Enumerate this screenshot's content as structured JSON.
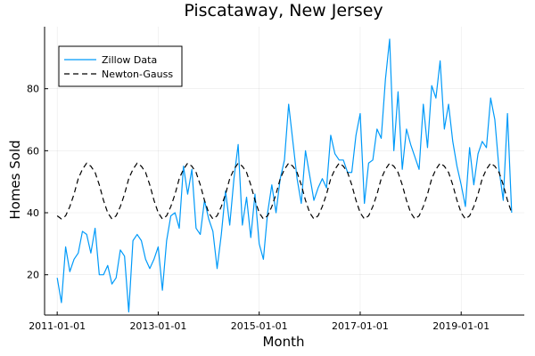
{
  "chart_data": {
    "type": "line",
    "title": "Piscataway, New Jersey",
    "xlabel": "Month",
    "ylabel": "Homes Sold",
    "x_start": "2011-01-01",
    "x_ticks": [
      "2011-01-01",
      "2013-01-01",
      "2015-01-01",
      "2017-01-01",
      "2019-01-01"
    ],
    "xlim": [
      "2010-10-01",
      "2020-04-01"
    ],
    "y_ticks": [
      20,
      40,
      60,
      80
    ],
    "ylim": [
      7,
      100
    ],
    "grid": true,
    "legend_position": "top-left",
    "series": [
      {
        "name": "Zillow Data",
        "color": "#009AF9",
        "style": "solid",
        "values": [
          19,
          11,
          29,
          21,
          25,
          27,
          34,
          33,
          27,
          35,
          20,
          20,
          23,
          17,
          19,
          28,
          26,
          8,
          31,
          33,
          31,
          25,
          22,
          25,
          29,
          15,
          31,
          39,
          40,
          35,
          55,
          46,
          54,
          35,
          33,
          44,
          38,
          34,
          22,
          33,
          47,
          36,
          51,
          62,
          36,
          45,
          32,
          46,
          30,
          25,
          40,
          49,
          40,
          51,
          57,
          75,
          63,
          51,
          43,
          60,
          52,
          44,
          48,
          51,
          48,
          65,
          59,
          57,
          57,
          53,
          53,
          65,
          72,
          43,
          56,
          57,
          67,
          64,
          83,
          96,
          60,
          79,
          54,
          67,
          62,
          58,
          54,
          75,
          61,
          81,
          77,
          89,
          67,
          75,
          63,
          55,
          49,
          42,
          61,
          49,
          59,
          63,
          61,
          77,
          70,
          54,
          44,
          72,
          40
        ]
      },
      {
        "name": "Newton-Gauss",
        "color": "#000000",
        "style": "dashed",
        "values": [
          39,
          38,
          39,
          42,
          46,
          51,
          54,
          56,
          55,
          53,
          49,
          44,
          40,
          38,
          39,
          42,
          46,
          51,
          54,
          56,
          55,
          53,
          49,
          44,
          40,
          38,
          39,
          42,
          46,
          51,
          54,
          56,
          55,
          53,
          49,
          44,
          40,
          38,
          39,
          42,
          46,
          51,
          54,
          56,
          55,
          53,
          49,
          44,
          40,
          38,
          39,
          42,
          46,
          51,
          54,
          56,
          55,
          53,
          49,
          44,
          40,
          38,
          39,
          42,
          46,
          51,
          54,
          56,
          55,
          53,
          49,
          44,
          40,
          38,
          39,
          42,
          46,
          51,
          54,
          56,
          55,
          53,
          49,
          44,
          40,
          38,
          39,
          42,
          46,
          51,
          54,
          56,
          55,
          53,
          49,
          44,
          40,
          38,
          39,
          42,
          46,
          51,
          54,
          56,
          55,
          53,
          49,
          44,
          40
        ]
      }
    ]
  }
}
